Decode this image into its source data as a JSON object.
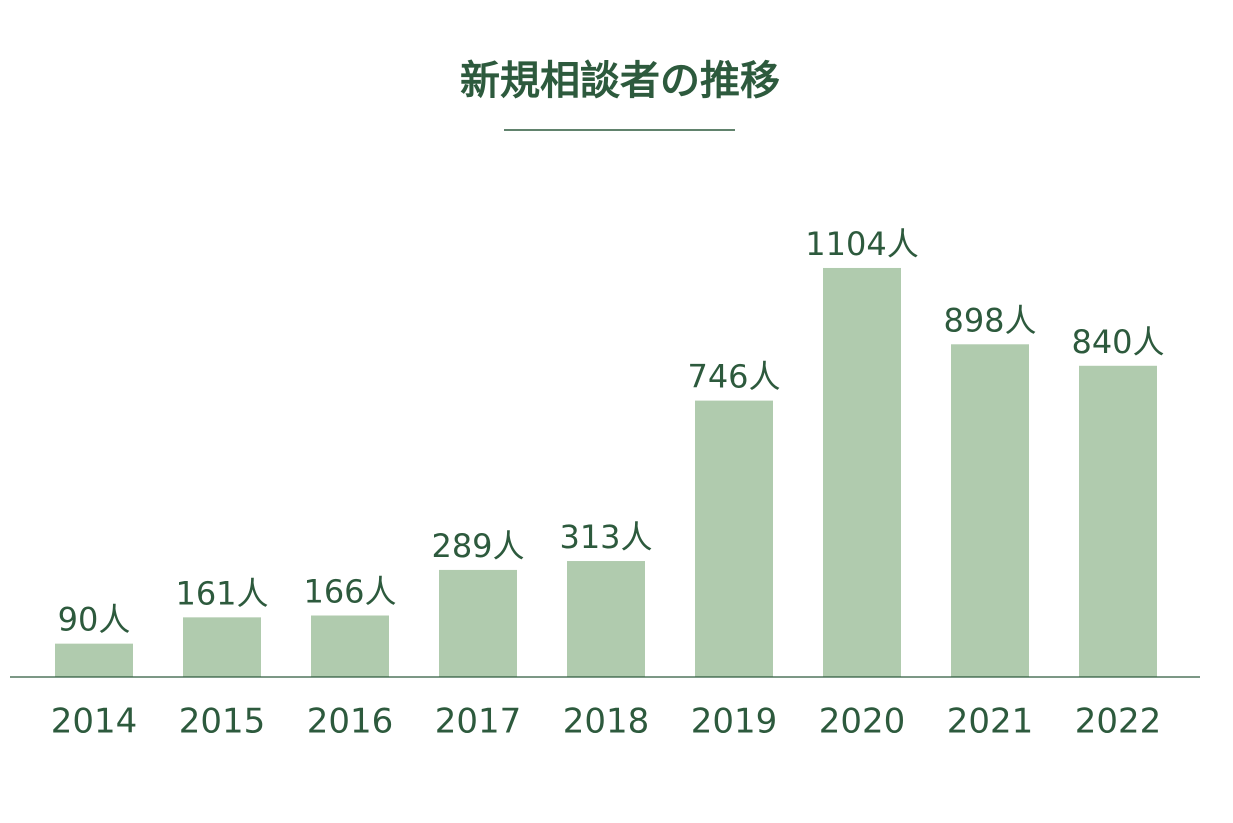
{
  "chart_data": {
    "type": "bar",
    "title": "新規相談者の推移",
    "categories": [
      "2014",
      "2015",
      "2016",
      "2017",
      "2018",
      "2019",
      "2020",
      "2021",
      "2022"
    ],
    "values": [
      90,
      161,
      166,
      289,
      313,
      746,
      1104,
      898,
      840
    ],
    "value_labels": [
      "90人",
      "161人",
      "166人",
      "289人",
      "313人",
      "746人",
      "1104人",
      "898人",
      "840人"
    ],
    "color": "#b0cbae"
  }
}
